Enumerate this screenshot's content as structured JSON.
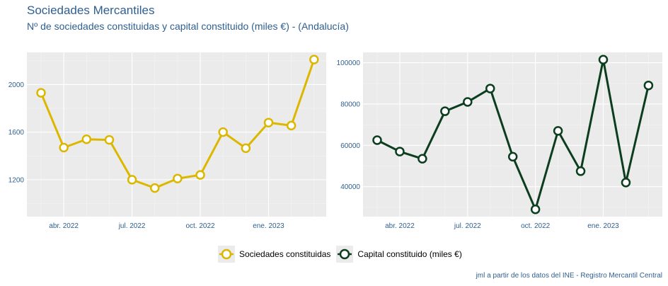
{
  "title": "Sociedades Mercantiles",
  "subtitle": "Nº de sociedades constituidas y capital constituido (miles €) - (Andalucía)",
  "caption": "jml a partir de los datos del INE - Registro Mercantil Central",
  "legend": [
    {
      "label": "Sociedades constituidas",
      "color": "#dcb700"
    },
    {
      "label": "Capital constituido (miles €)",
      "color": "#0b3d1e"
    }
  ],
  "chart_data": [
    {
      "type": "line",
      "x": [
        "2022-03",
        "2022-04",
        "2022-05",
        "2022-06",
        "2022-07",
        "2022-08",
        "2022-09",
        "2022-10",
        "2022-11",
        "2022-12",
        "2023-01",
        "2023-02",
        "2023-03"
      ],
      "x_tick_labels": [
        "abr. 2022",
        "jul. 2022",
        "oct. 2022",
        "ene. 2023"
      ],
      "x_tick_values": [
        "2022-04",
        "2022-07",
        "2022-10",
        "2023-01"
      ],
      "y_tick_labels": [
        "1200",
        "1600",
        "2000"
      ],
      "y_tick_values": [
        1200,
        1600,
        2000
      ],
      "ylim": [
        890,
        2270
      ],
      "grid": true,
      "series": [
        {
          "name": "Sociedades constituidas",
          "color": "#dcb700",
          "values": [
            1930,
            1470,
            1540,
            1535,
            1200,
            1130,
            1210,
            1240,
            1600,
            1465,
            1680,
            1655,
            2210
          ]
        }
      ]
    },
    {
      "type": "line",
      "x": [
        "2022-03",
        "2022-04",
        "2022-05",
        "2022-06",
        "2022-07",
        "2022-08",
        "2022-09",
        "2022-10",
        "2022-11",
        "2022-12",
        "2023-01",
        "2023-02",
        "2023-03"
      ],
      "x_tick_labels": [
        "abr. 2022",
        "jul. 2022",
        "oct. 2022",
        "ene. 2023"
      ],
      "x_tick_values": [
        "2022-04",
        "2022-07",
        "2022-10",
        "2023-01"
      ],
      "y_tick_labels": [
        "40000",
        "60000",
        "80000",
        "100000"
      ],
      "y_tick_values": [
        40000,
        60000,
        80000,
        100000
      ],
      "ylim": [
        25500,
        105000
      ],
      "grid": true,
      "series": [
        {
          "name": "Capital constituido (miles €)",
          "color": "#0b3d1e",
          "values": [
            62500,
            57000,
            53500,
            76500,
            81000,
            87500,
            54500,
            29000,
            67000,
            47500,
            101500,
            42000,
            89000
          ]
        }
      ]
    }
  ]
}
